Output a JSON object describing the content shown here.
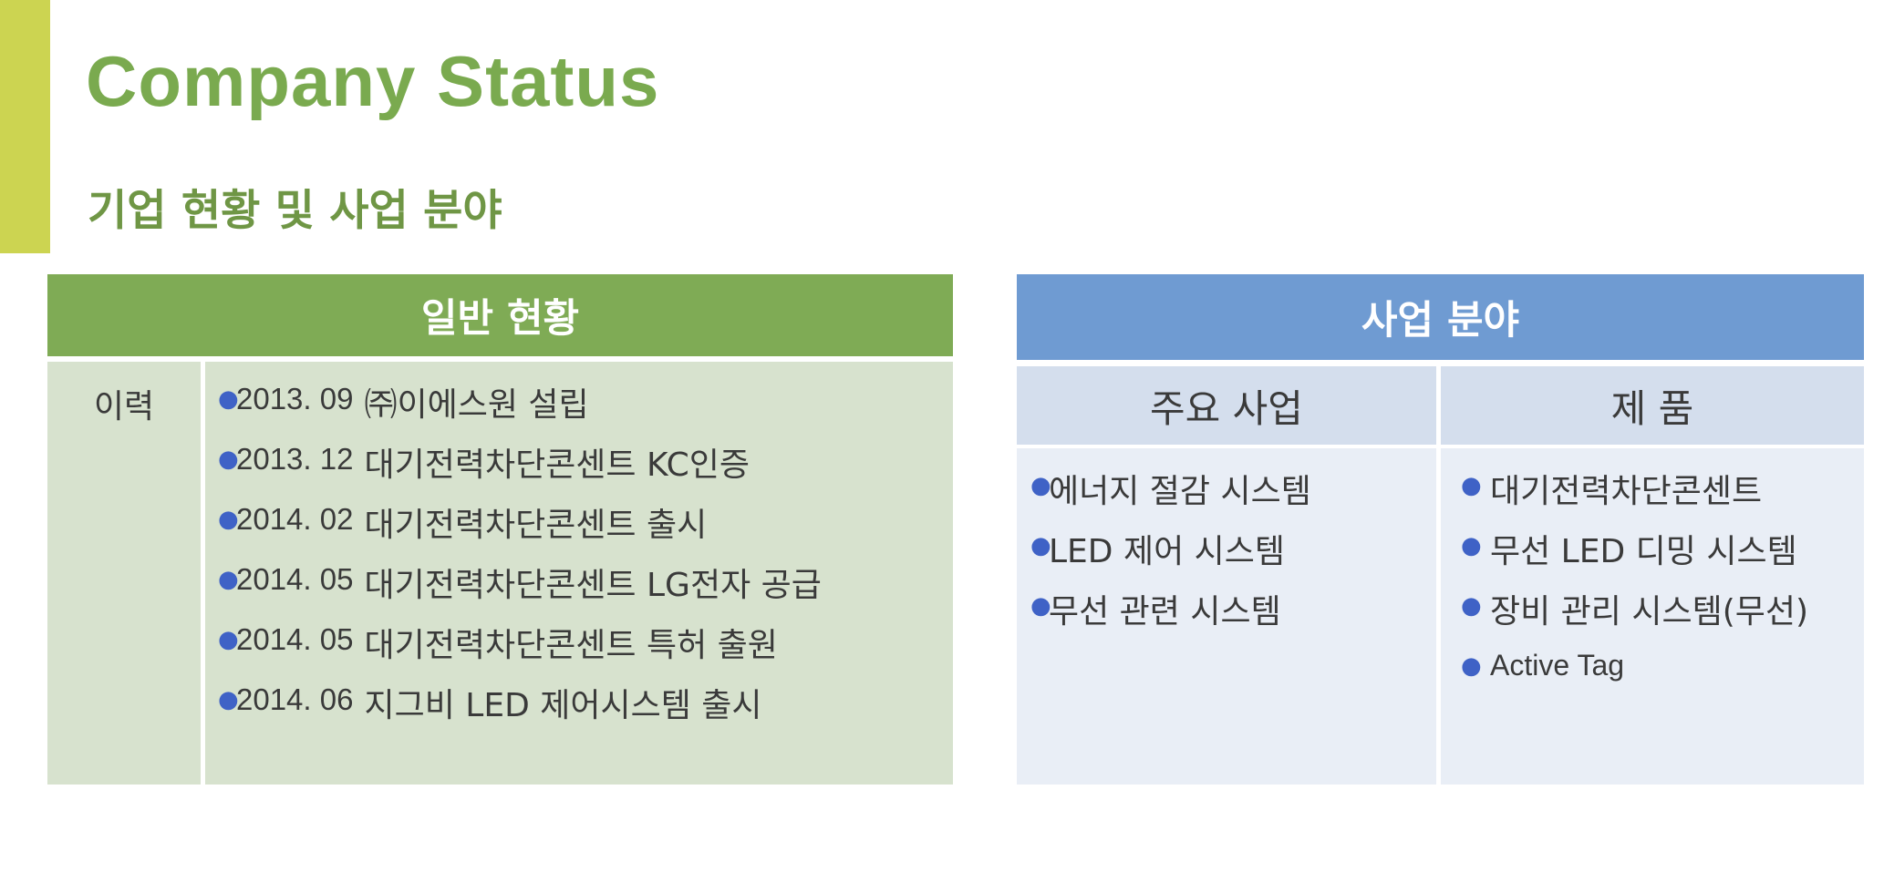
{
  "slide": {
    "title": "Company Status",
    "subtitle": "기업 현황 및 사업 분야",
    "accent_color": "#ccd451",
    "title_color": "#7aaa4f"
  },
  "general": {
    "header": "일반 현황",
    "header_color": "#7fab55",
    "row_label": "이력",
    "items": [
      {
        "date": "2013. 09",
        "text": "㈜이에스원 설립"
      },
      {
        "date": "2013. 12",
        "text": "대기전력차단콘센트 KC인증"
      },
      {
        "date": "2014. 02",
        "text": "대기전력차단콘센트  출시"
      },
      {
        "date": "2014. 05",
        "text": "대기전력차단콘센트  LG전자 공급"
      },
      {
        "date": "2014. 05",
        "text": "대기전력차단콘센트 특허 출원"
      },
      {
        "date": "2014. 06",
        "text": "지그비 LED 제어시스템 출시"
      }
    ]
  },
  "business": {
    "header": "사업 분야",
    "header_color": "#6f9bd2",
    "main_business": {
      "header": "주요 사업",
      "items": [
        "에너지 절감 시스템",
        "LED 제어 시스템",
        "무선 관련 시스템"
      ]
    },
    "products": {
      "header": "제 품",
      "items": [
        "대기전력차단콘센트",
        "무선 LED 디밍 시스템",
        "장비 관리 시스템(무선)",
        "Active Tag"
      ]
    }
  },
  "icons": {
    "bullet": "bullet-dot-icon"
  }
}
